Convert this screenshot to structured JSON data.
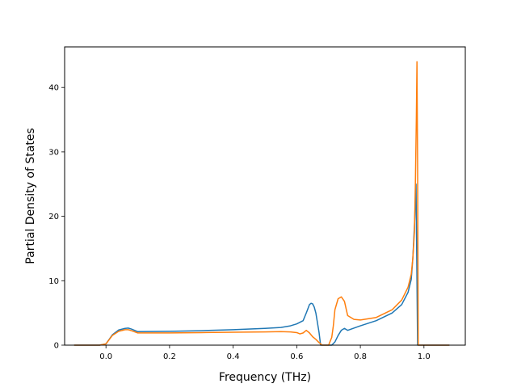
{
  "chart_data": {
    "type": "line",
    "title": "",
    "xlabel": "Frequency (THz)",
    "ylabel": "Partial Density of States",
    "xlim": [
      -0.13,
      1.13
    ],
    "ylim": [
      0,
      46.3
    ],
    "xticks": [
      0.0,
      0.2,
      0.4,
      0.6,
      0.8,
      1.0
    ],
    "xtick_labels": [
      "0.0",
      "0.2",
      "0.4",
      "0.6",
      "0.8",
      "1.0"
    ],
    "yticks": [
      0,
      10,
      20,
      30,
      40
    ],
    "ytick_labels": [
      "0",
      "10",
      "20",
      "30",
      "40"
    ],
    "grid": false,
    "legend": "none",
    "series": [
      {
        "color": "#1f77b4",
        "x": [
          -0.1,
          -0.02,
          0.0,
          0.02,
          0.04,
          0.06,
          0.07,
          0.08,
          0.1,
          0.2,
          0.3,
          0.4,
          0.5,
          0.55,
          0.58,
          0.6,
          0.62,
          0.63,
          0.64,
          0.645,
          0.65,
          0.655,
          0.66,
          0.67,
          0.675,
          0.69,
          0.7,
          0.71,
          0.72,
          0.73,
          0.74,
          0.75,
          0.755,
          0.76,
          0.8,
          0.85,
          0.9,
          0.93,
          0.95,
          0.96,
          0.965,
          0.97,
          0.975,
          0.98,
          0.985,
          0.99,
          1.08
        ],
        "y": [
          0,
          0,
          0.2,
          1.6,
          2.35,
          2.6,
          2.65,
          2.5,
          2.1,
          2.15,
          2.25,
          2.4,
          2.6,
          2.75,
          3.0,
          3.3,
          3.8,
          5.0,
          6.3,
          6.5,
          6.4,
          5.9,
          5.0,
          2.0,
          0,
          0,
          0,
          0,
          0.5,
          1.5,
          2.3,
          2.6,
          2.45,
          2.3,
          3.0,
          3.8,
          5.0,
          6.3,
          8.2,
          10.2,
          13.5,
          18.5,
          25.0,
          0,
          0,
          0,
          0
        ]
      },
      {
        "color": "#ff7f0e",
        "x": [
          -0.1,
          -0.02,
          0.0,
          0.02,
          0.04,
          0.06,
          0.07,
          0.08,
          0.1,
          0.2,
          0.3,
          0.4,
          0.5,
          0.55,
          0.58,
          0.6,
          0.61,
          0.62,
          0.63,
          0.64,
          0.65,
          0.66,
          0.67,
          0.68,
          0.69,
          0.7,
          0.71,
          0.715,
          0.72,
          0.73,
          0.74,
          0.75,
          0.76,
          0.78,
          0.8,
          0.85,
          0.9,
          0.93,
          0.95,
          0.96,
          0.965,
          0.97,
          0.973,
          0.976,
          0.978,
          0.98,
          0.982,
          0.985,
          0.99,
          1.08
        ],
        "y": [
          0,
          0,
          0.2,
          1.5,
          2.15,
          2.4,
          2.4,
          2.25,
          1.9,
          1.9,
          1.95,
          2.0,
          2.05,
          2.1,
          2.05,
          1.95,
          1.75,
          1.9,
          2.3,
          1.9,
          1.3,
          0.9,
          0.4,
          0,
          0,
          0,
          1.2,
          3.0,
          5.5,
          7.2,
          7.5,
          6.8,
          4.6,
          4.0,
          3.9,
          4.3,
          5.5,
          7.0,
          9.0,
          11.0,
          13.5,
          17.5,
          25.0,
          35.0,
          44.0,
          28.0,
          0,
          0,
          0,
          0
        ]
      }
    ]
  }
}
